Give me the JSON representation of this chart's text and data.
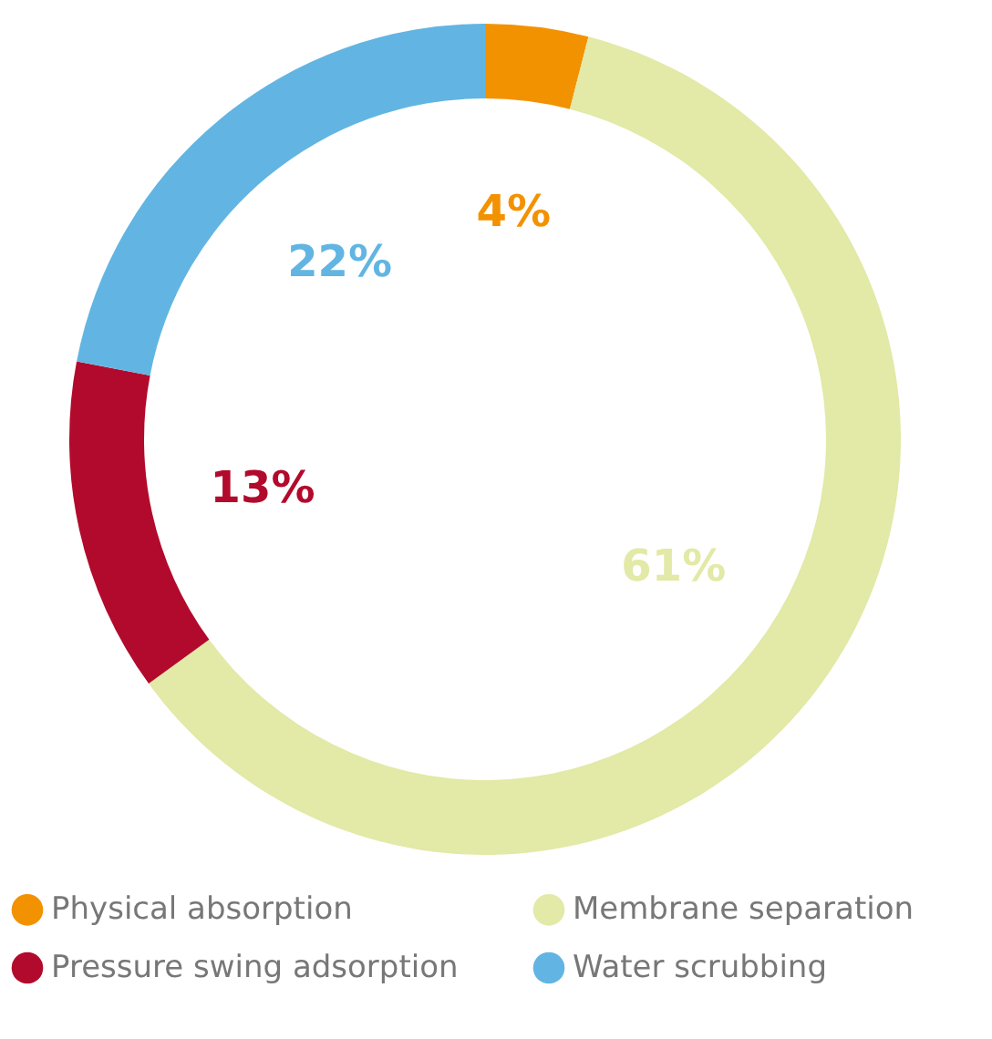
{
  "chart_data": {
    "type": "donut",
    "categories": [
      "Physical absorption",
      "Membrane separation",
      "Pressure swing adsorption",
      "Water scrubbing"
    ],
    "values": [
      4,
      61,
      13,
      22
    ],
    "colors": [
      "#f39200",
      "#e3e9a6",
      "#b20a2c",
      "#62b5e2"
    ],
    "value_labels": [
      "4%",
      "61%",
      "13%",
      "22%"
    ],
    "legend": "bottom"
  }
}
